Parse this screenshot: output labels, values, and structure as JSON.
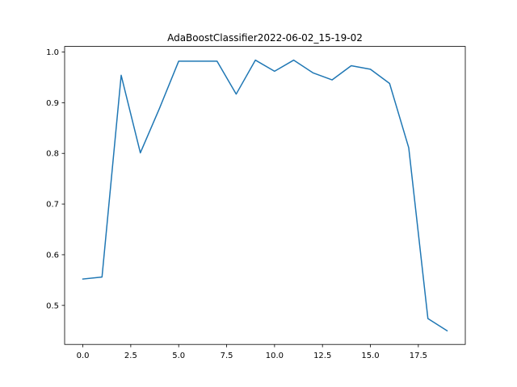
{
  "chart_data": {
    "type": "line",
    "title": "AdaBoostClassifier2022-06-02_15-19-02",
    "xlabel": "",
    "ylabel": "",
    "xlim": [
      -0.95,
      19.95
    ],
    "ylim": [
      0.423,
      1.011
    ],
    "xticks": [
      0.0,
      2.5,
      5.0,
      7.5,
      10.0,
      12.5,
      15.0,
      17.5
    ],
    "xtick_labels": [
      "0.0",
      "2.5",
      "5.0",
      "7.5",
      "10.0",
      "12.5",
      "15.0",
      "17.5"
    ],
    "yticks": [
      0.5,
      0.6,
      0.7,
      0.8,
      0.9,
      1.0
    ],
    "ytick_labels": [
      "0.5",
      "0.6",
      "0.7",
      "0.8",
      "0.9",
      "1.0"
    ],
    "grid": false,
    "series": [
      {
        "color": "#1f77b4",
        "x": [
          0,
          1,
          2,
          3,
          4,
          5,
          6,
          7,
          8,
          9,
          10,
          11,
          12,
          13,
          14,
          15,
          16,
          17,
          18,
          19
        ],
        "values": [
          0.552,
          0.556,
          0.954,
          0.801,
          0.889,
          0.982,
          0.982,
          0.982,
          0.917,
          0.984,
          0.962,
          0.984,
          0.959,
          0.945,
          0.973,
          0.966,
          0.938,
          0.811,
          0.474,
          0.45
        ]
      }
    ]
  }
}
